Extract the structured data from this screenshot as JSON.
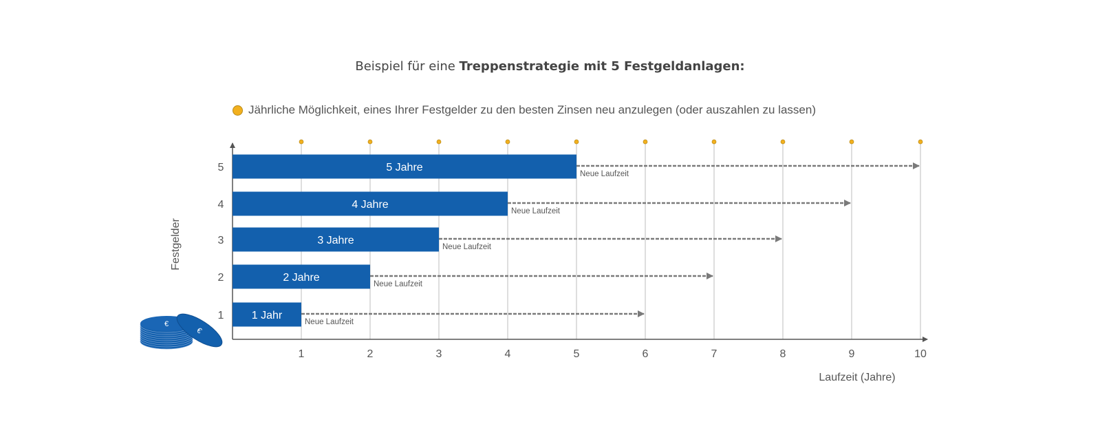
{
  "title": {
    "normal": "Beispiel für eine ",
    "bold": "Treppenstrategie mit 5 Festgeldanlagen:"
  },
  "legend": {
    "label": "Jährliche Möglichkeit, eines Ihrer Festgelder zu den besten Zinsen neu anzulegen (oder auszahlen zu lassen)",
    "marker_color": "#f2b01e"
  },
  "chart_data": {
    "type": "bar",
    "orientation": "horizontal",
    "xlabel": "Laufzeit (Jahre)",
    "ylabel": "Festgelder",
    "xlim": [
      0,
      10
    ],
    "xticks": [
      "1",
      "2",
      "3",
      "4",
      "5",
      "6",
      "7",
      "8",
      "9",
      "10"
    ],
    "categories": [
      "1",
      "2",
      "3",
      "4",
      "5"
    ],
    "values": [
      1,
      2,
      3,
      4,
      5
    ],
    "bar_labels": [
      "1 Jahr",
      "2 Jahre",
      "3 Jahre",
      "4 Jahre",
      "5 Jahre"
    ],
    "new_term_label": "Neue Laufzeit",
    "new_term_end": [
      6,
      7,
      8,
      9,
      10
    ],
    "opportunity_years": [
      1,
      2,
      3,
      4,
      5,
      6,
      7,
      8,
      9,
      10
    ],
    "bar_color": "#1360ad",
    "arrow_color": "#7a7a7a",
    "grid": true
  }
}
